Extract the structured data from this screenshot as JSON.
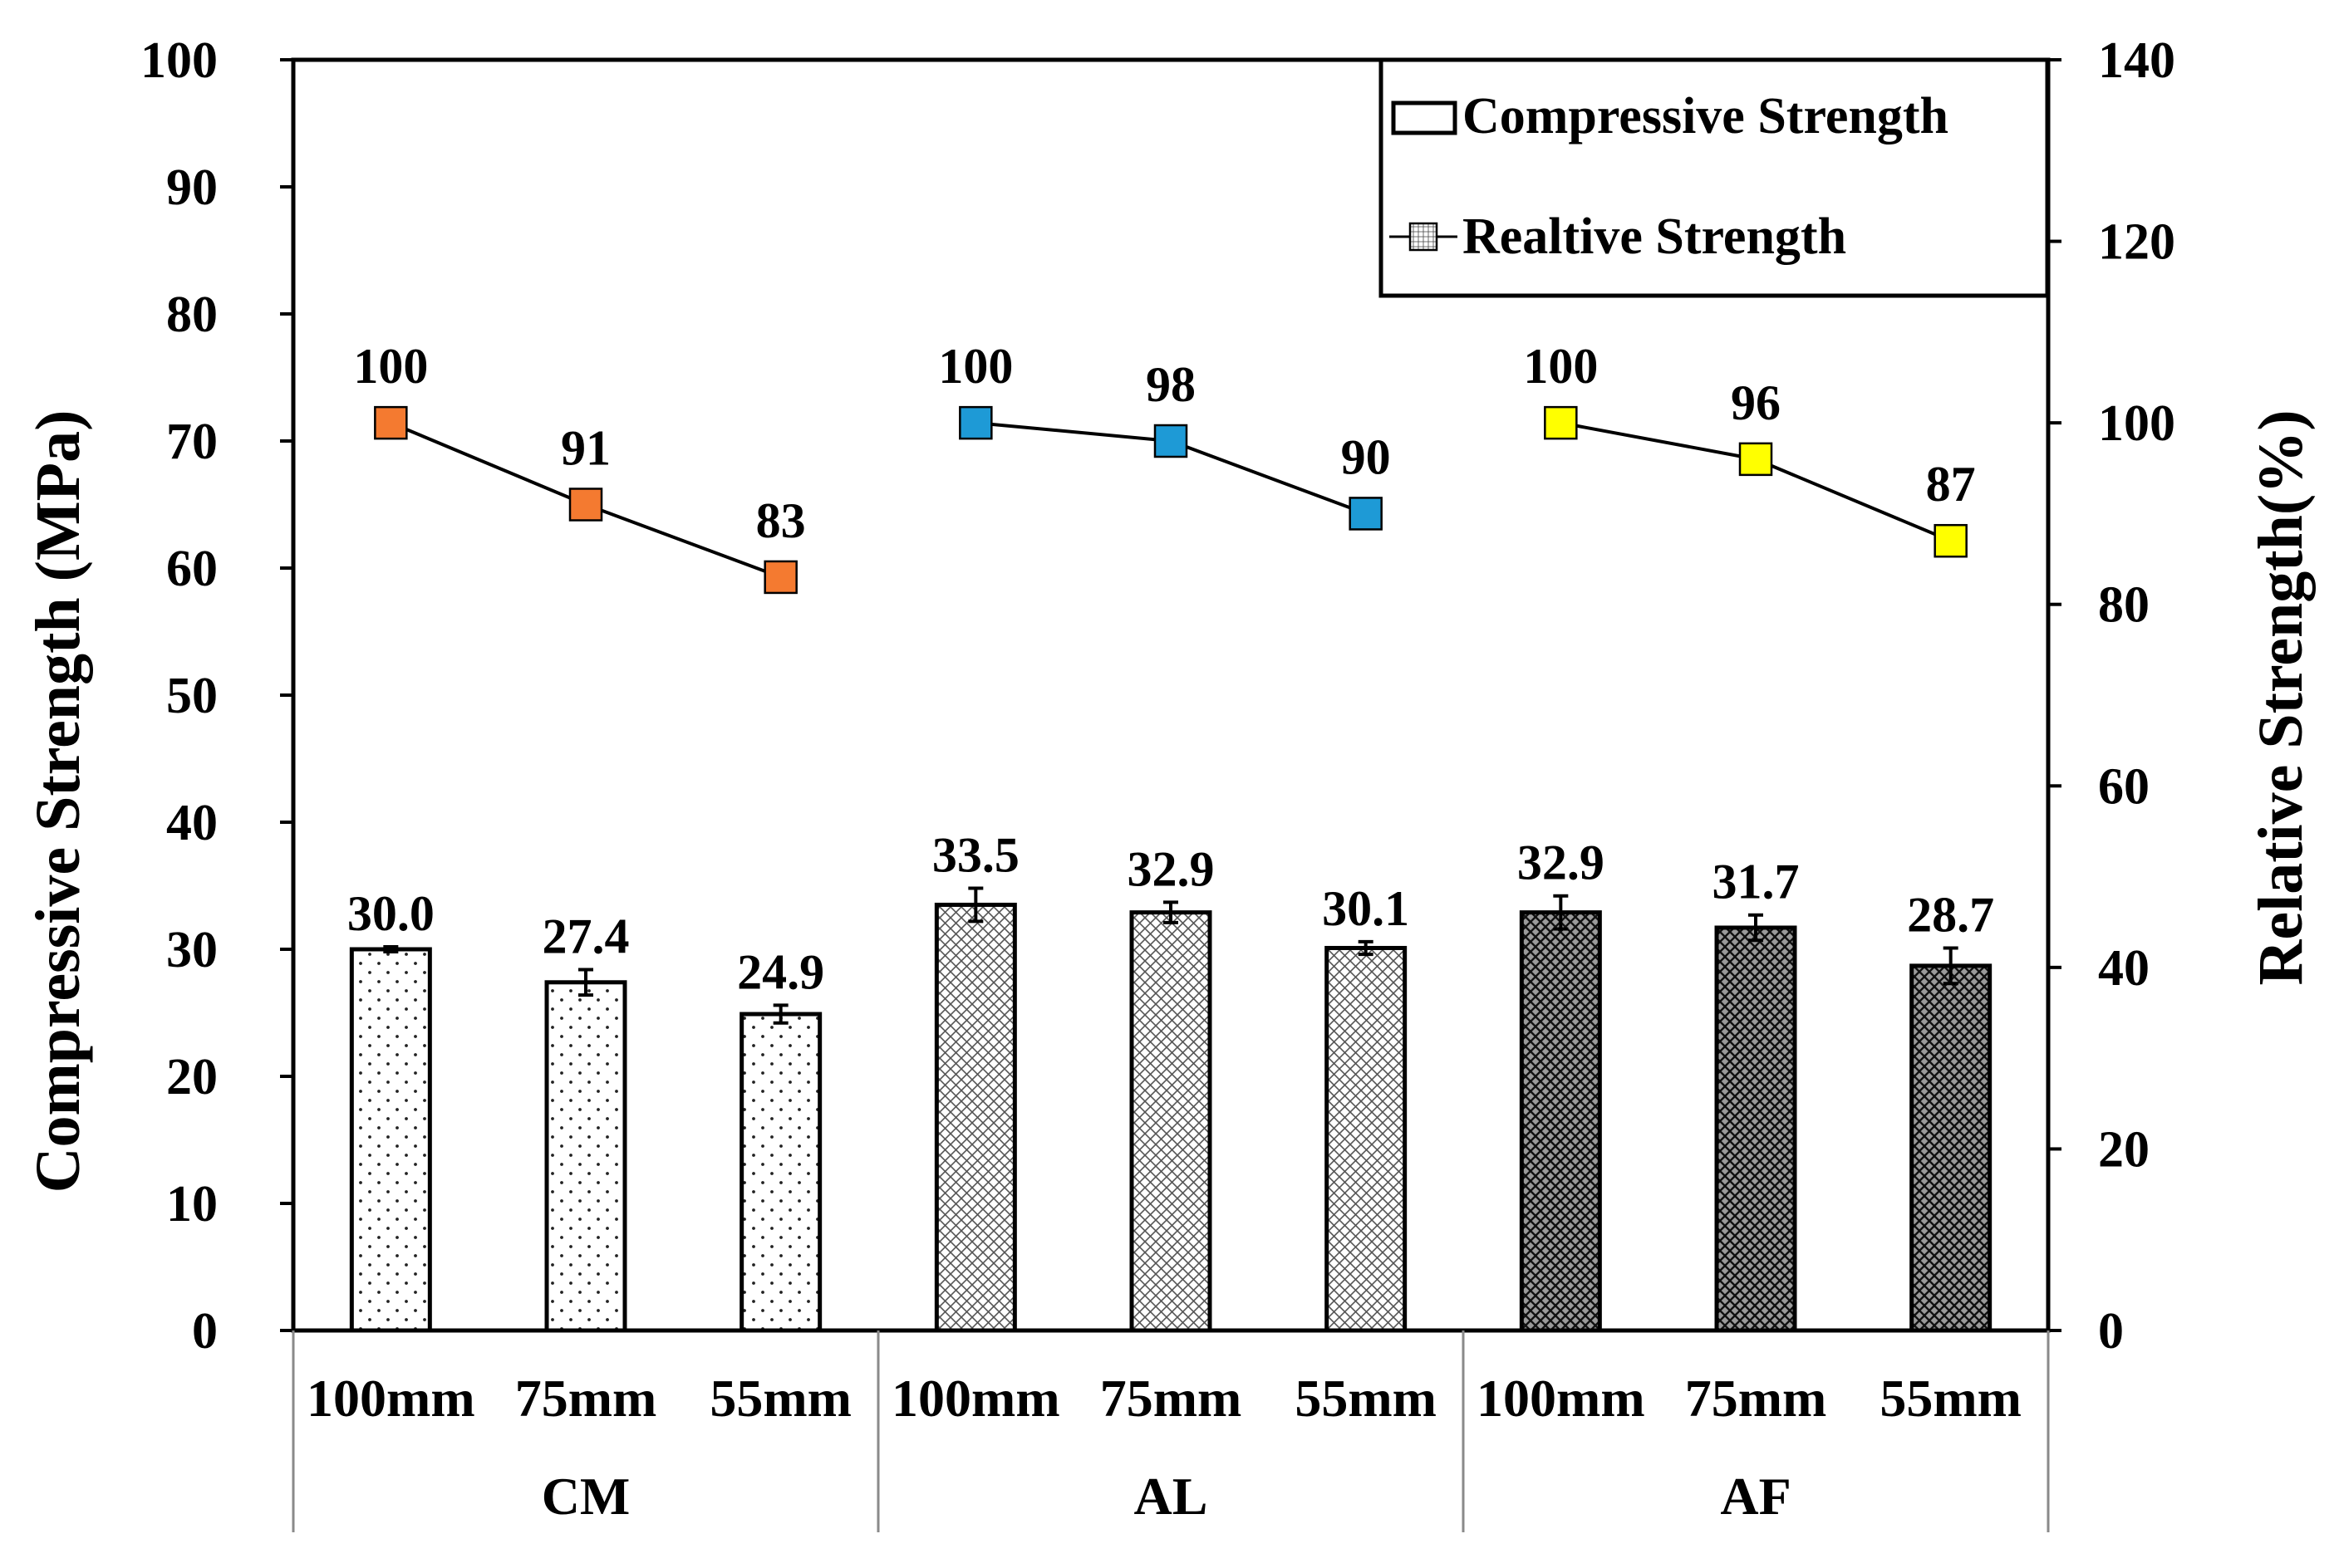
{
  "chart_data": {
    "type": "bar+line",
    "groups": [
      "CM",
      "AL",
      "AF"
    ],
    "categories": [
      "100mm",
      "75mm",
      "55mm"
    ],
    "bars": {
      "name": "Compressive Strength",
      "values": [
        [
          30.0,
          27.4,
          24.9
        ],
        [
          33.5,
          32.9,
          30.1
        ],
        [
          32.9,
          31.7,
          28.7
        ]
      ],
      "labels": [
        [
          "30.0",
          "27.4",
          "24.9"
        ],
        [
          "33.5",
          "32.9",
          "30.1"
        ],
        [
          "32.9",
          "31.7",
          "28.7"
        ]
      ],
      "errors": [
        [
          0.2,
          1.0,
          0.7
        ],
        [
          1.3,
          0.8,
          0.5
        ],
        [
          1.3,
          1.0,
          1.4
        ]
      ],
      "patterns": [
        "dots",
        "fine-cross",
        "dense-cross"
      ]
    },
    "line": {
      "name": "Realtive Strength",
      "values": [
        [
          100,
          91,
          83
        ],
        [
          100,
          98,
          90
        ],
        [
          100,
          96,
          87
        ]
      ],
      "labels": [
        [
          "100",
          "91",
          "83"
        ],
        [
          "100",
          "98",
          "90"
        ],
        [
          "100",
          "96",
          "87"
        ]
      ],
      "marker_colors": [
        "#f47a30",
        "#1e9ad6",
        "#ffff00"
      ]
    },
    "left_axis": {
      "label": "Compressive Strength (MPa)",
      "min": 0,
      "max": 100,
      "ticks": [
        "0",
        "10",
        "20",
        "30",
        "40",
        "50",
        "60",
        "70",
        "80",
        "90",
        "100"
      ]
    },
    "right_axis": {
      "label": "Relative Strength(%)",
      "min": 0,
      "max": 140,
      "ticks": [
        "0",
        "20",
        "40",
        "60",
        "80",
        "100",
        "120",
        "140"
      ]
    },
    "legend": {
      "position": "top-right",
      "items": [
        "Compressive Strength",
        "Realtive Strength"
      ]
    }
  }
}
